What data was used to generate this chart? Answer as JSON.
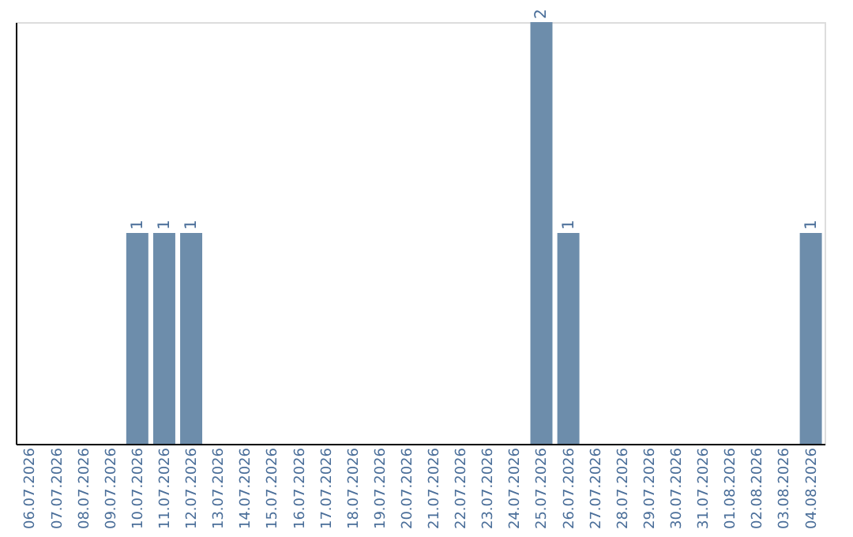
{
  "chart_data": {
    "type": "bar",
    "categories": [
      "06.07.2026",
      "07.07.2026",
      "08.07.2026",
      "09.07.2026",
      "10.07.2026",
      "11.07.2026",
      "12.07.2026",
      "13.07.2026",
      "14.07.2026",
      "15.07.2026",
      "16.07.2026",
      "17.07.2026",
      "18.07.2026",
      "19.07.2026",
      "20.07.2026",
      "21.07.2026",
      "22.07.2026",
      "23.07.2026",
      "24.07.2026",
      "25.07.2026",
      "26.07.2026",
      "27.07.2026",
      "28.07.2026",
      "29.07.2026",
      "30.07.2026",
      "31.07.2026",
      "01.08.2026",
      "02.08.2026",
      "03.08.2026",
      "04.08.2026"
    ],
    "values": [
      0,
      0,
      0,
      0,
      1,
      1,
      1,
      0,
      0,
      0,
      0,
      0,
      0,
      0,
      0,
      0,
      0,
      0,
      0,
      2,
      1,
      0,
      0,
      0,
      0,
      0,
      0,
      0,
      0,
      1
    ],
    "value_labels": [
      null,
      null,
      null,
      null,
      "1",
      "1",
      "1",
      null,
      null,
      null,
      null,
      null,
      null,
      null,
      null,
      null,
      null,
      null,
      null,
      "2",
      "1",
      null,
      null,
      null,
      null,
      null,
      null,
      null,
      null,
      "1"
    ],
    "color": "#6d8dab",
    "ylim": [
      0,
      2
    ],
    "tick_labels": "x",
    "grid": false
  }
}
